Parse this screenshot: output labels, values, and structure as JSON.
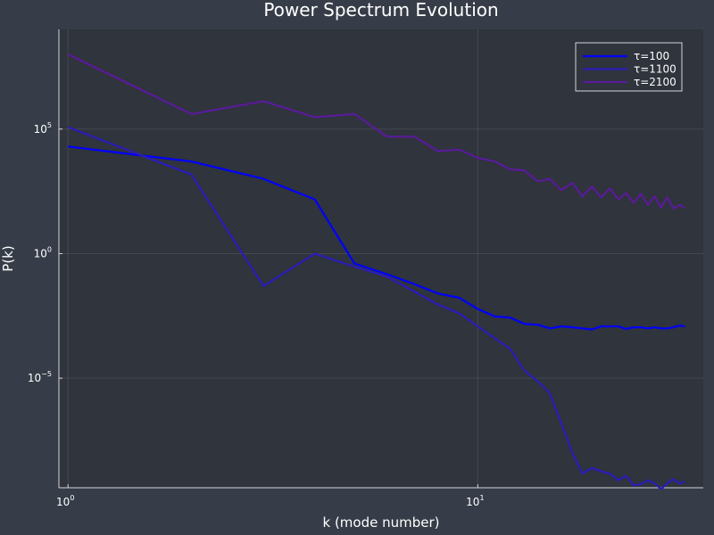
{
  "chart_data": {
    "type": "line",
    "title": "Power Spectrum Evolution",
    "xlabel": "k (mode number)",
    "ylabel": "P(k)",
    "xscale": "log10",
    "yscale": "log10",
    "xlim": [
      0.95,
      35.5
    ],
    "ylim": [
      4e-10,
      1000000000.0
    ],
    "grid": true,
    "legend_position": "top-right",
    "x_ticks": [
      {
        "value": 1,
        "base": "10",
        "exp": "0"
      },
      {
        "value": 10,
        "base": "10",
        "exp": "1"
      }
    ],
    "y_ticks": [
      {
        "value": 100000.0,
        "base": "10",
        "exp": "5"
      },
      {
        "value": 1,
        "base": "10",
        "exp": "0"
      },
      {
        "value": 1e-05,
        "base": "10",
        "exp": "−5"
      }
    ],
    "series": [
      {
        "name": "τ=100",
        "color": "#0000ff",
        "x": [
          1,
          2,
          3,
          4,
          5,
          6,
          7,
          8,
          9,
          10,
          11,
          12,
          13,
          14,
          15,
          16,
          17,
          18,
          19,
          20,
          21,
          22,
          23,
          24,
          25,
          26,
          27,
          28,
          29,
          30,
          31,
          32
        ],
        "y": [
          20000.0,
          5000.0,
          1000.0,
          150.0,
          0.4,
          0.15,
          0.06,
          0.025,
          0.017,
          0.006,
          0.003,
          0.0027,
          0.0015,
          0.0014,
          0.001,
          0.0012,
          0.0011,
          0.001,
          0.0009,
          0.0012,
          0.0012,
          0.0012,
          0.00095,
          0.0011,
          0.0011,
          0.001,
          0.0011,
          0.001,
          0.001,
          0.0011,
          0.0013,
          0.0012
        ]
      },
      {
        "name": "τ=1100",
        "color": "#2b1cb8",
        "x": [
          1,
          2,
          3,
          4,
          5,
          6,
          7,
          8,
          9,
          10,
          11,
          12,
          13,
          14,
          15,
          16,
          17,
          18,
          19,
          20,
          21,
          22,
          23,
          24,
          25,
          26,
          27,
          28,
          29,
          30,
          31,
          32
        ],
        "y": [
          120000.0,
          1500.0,
          0.05,
          1,
          0.3,
          0.12,
          0.03,
          0.009,
          0.004,
          0.0012,
          0.0004,
          0.00015,
          2e-05,
          7.5e-06,
          2.5e-06,
          1.5e-07,
          1e-08,
          1.5e-09,
          2.5e-09,
          1.8e-09,
          1.5e-09,
          8e-10,
          1.2e-09,
          5e-10,
          5.5e-10,
          8e-10,
          6e-10,
          3.5e-10,
          6e-10,
          9e-10,
          6e-10,
          7e-10
        ]
      },
      {
        "name": "τ=2100",
        "color": "#5a1a9a",
        "x": [
          1,
          2,
          3,
          4,
          5,
          6,
          7,
          8,
          9,
          10,
          11,
          12,
          13,
          14,
          15,
          16,
          17,
          18,
          19,
          20,
          21,
          22,
          23,
          24,
          25,
          26,
          27,
          28,
          29,
          30,
          31,
          32
        ],
        "y": [
          100000000.0,
          400000.0,
          1300000.0,
          300000.0,
          400000.0,
          50000.0,
          50000.0,
          13000.0,
          15000.0,
          7000.0,
          5000.0,
          2400.0,
          2200.0,
          800,
          1000,
          350,
          700,
          200,
          500,
          180,
          420,
          150,
          270,
          110,
          250,
          90,
          200,
          70,
          180,
          65,
          90,
          70
        ]
      }
    ]
  }
}
